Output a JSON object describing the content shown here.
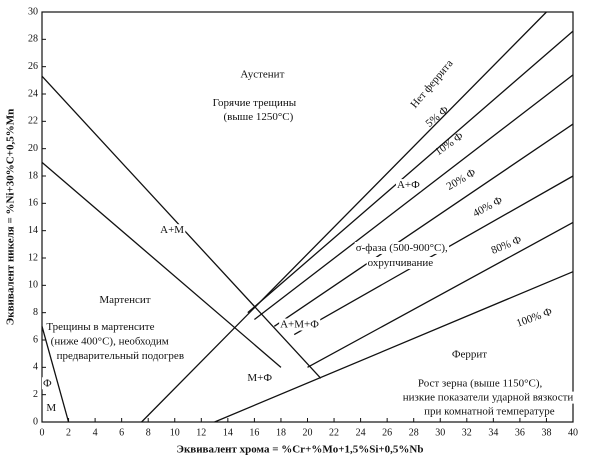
{
  "chart_data": {
    "type": "line",
    "x_label": "Эквивалент хрома = %Cr+%Mo+1,5%Si+0,5%Nb",
    "y_label": "Эквивалент никеля = %Ni+30%C+0,5%Mn",
    "xlim": [
      0,
      40
    ],
    "ylim": [
      0,
      30
    ],
    "xticks": [
      0,
      2,
      4,
      6,
      8,
      10,
      12,
      14,
      16,
      18,
      20,
      22,
      24,
      26,
      28,
      30,
      32,
      34,
      36,
      38,
      40
    ],
    "yticks": [
      0,
      2,
      4,
      6,
      8,
      10,
      12,
      14,
      16,
      18,
      20,
      22,
      24,
      26,
      28,
      30
    ],
    "color": "#111111",
    "series": [
      {
        "x": [
          0,
          21
        ],
        "values": [
          25.3,
          3.2
        ]
      },
      {
        "x": [
          0,
          18
        ],
        "values": [
          19,
          4
        ]
      },
      {
        "x": [
          0,
          2
        ],
        "values": [
          7,
          0
        ]
      },
      {
        "x": [
          7.5,
          38
        ],
        "values": [
          0,
          30
        ]
      },
      {
        "x": [
          15.5,
          40
        ],
        "values": [
          8,
          28.6
        ]
      },
      {
        "x": [
          16,
          40
        ],
        "values": [
          7.5,
          25.4
        ]
      },
      {
        "x": [
          17.5,
          40
        ],
        "values": [
          7,
          21.8
        ]
      },
      {
        "x": [
          19,
          40
        ],
        "values": [
          6.4,
          18
        ]
      },
      {
        "x": [
          20,
          40
        ],
        "values": [
          4,
          14.6
        ]
      },
      {
        "x": [
          13,
          40
        ],
        "values": [
          0,
          11
        ]
      }
    ],
    "annotations": [
      "Аустенит",
      "Горячие трещины",
      "(выше 1250°C)",
      "Нет феррита",
      "5% Ф",
      "10% Ф",
      "20% Ф",
      "40% Ф",
      "80% Ф",
      "100% Ф",
      "А+М",
      "А+Ф",
      "σ-фаза (500-900°C),",
      "охрупчивание",
      "Мартенсит",
      "Трещины в мартенсите",
      "(ниже 400°C), необходим",
      "предварительный подогрев",
      "А+М+Ф",
      "М+Ф",
      "Феррит",
      "Рост зерна (выше 1150°C),",
      "низкие показатели ударной вязкости",
      "при комнатной температуре",
      "Ф",
      "М"
    ]
  }
}
